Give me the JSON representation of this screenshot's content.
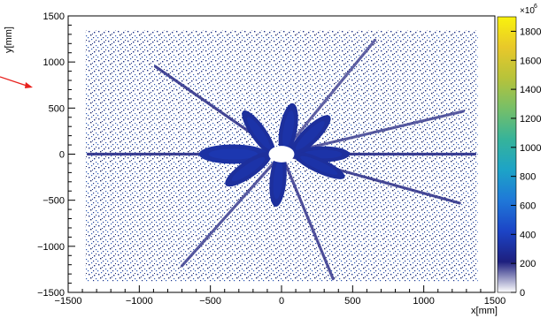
{
  "chart_data": {
    "type": "heatmap",
    "title": "",
    "xlabel": "x[mm]",
    "ylabel": "y[mm]",
    "xlim": [
      -1500,
      1500
    ],
    "ylim": [
      -1500,
      1500
    ],
    "x_ticks": [
      -1500,
      -1000,
      -500,
      0,
      500,
      1000,
      1500
    ],
    "y_ticks": [
      -1500,
      -1000,
      -500,
      0,
      500,
      1000,
      1500
    ],
    "colorbar": {
      "min": 0,
      "max": 1900,
      "multiplier": "×10",
      "exponent": "6",
      "ticks": [
        0,
        200,
        400,
        600,
        800,
        1000,
        1200,
        1400,
        1600,
        1800
      ],
      "colors": [
        "#ffffff",
        "#1d1f7e",
        "#1c44c6",
        "#1f78d8",
        "#1da3c7",
        "#36b39a",
        "#76bf68",
        "#b7c33a",
        "#e8c82a",
        "#f9f20d"
      ]
    },
    "background": {
      "extent_x": [
        -1380,
        1380
      ],
      "extent_y": [
        -1380,
        1340
      ],
      "level": 100,
      "central_hole_radius": 90
    },
    "arms": [
      {
        "angle_deg": 0,
        "length": 1360,
        "level": 220
      },
      {
        "angle_deg": 20,
        "length": 1360,
        "level": 180
      },
      {
        "angle_deg": 62,
        "length": 1400,
        "level": 170
      },
      {
        "angle_deg": 133,
        "length": 1300,
        "level": 200
      },
      {
        "angle_deg": 180,
        "length": 1360,
        "level": 220
      },
      {
        "angle_deg": 240,
        "length": 1400,
        "level": 180
      },
      {
        "angle_deg": 285,
        "length": 1400,
        "level": 190
      },
      {
        "angle_deg": 337,
        "length": 1360,
        "level": 200
      }
    ],
    "petals": [
      {
        "angle_deg": 0,
        "inner": 100,
        "outer": 480,
        "width": 170,
        "level": 300
      },
      {
        "angle_deg": 45,
        "inner": 90,
        "outer": 480,
        "width": 185,
        "level": 300
      },
      {
        "angle_deg": 80,
        "inner": 90,
        "outer": 460,
        "width": 190,
        "level": 300
      },
      {
        "angle_deg": 125,
        "inner": 90,
        "outer": 470,
        "width": 170,
        "level": 300
      },
      {
        "angle_deg": 180,
        "inner": 100,
        "outer": 580,
        "width": 210,
        "level": 320
      },
      {
        "angle_deg": 215,
        "inner": 90,
        "outer": 480,
        "width": 185,
        "level": 300
      },
      {
        "angle_deg": 265,
        "inner": 90,
        "outer": 470,
        "width": 180,
        "level": 300
      },
      {
        "angle_deg": 335,
        "inner": 90,
        "outer": 490,
        "width": 160,
        "level": 300
      }
    ]
  },
  "annotations": {
    "arrow_color": "#e8211d"
  }
}
